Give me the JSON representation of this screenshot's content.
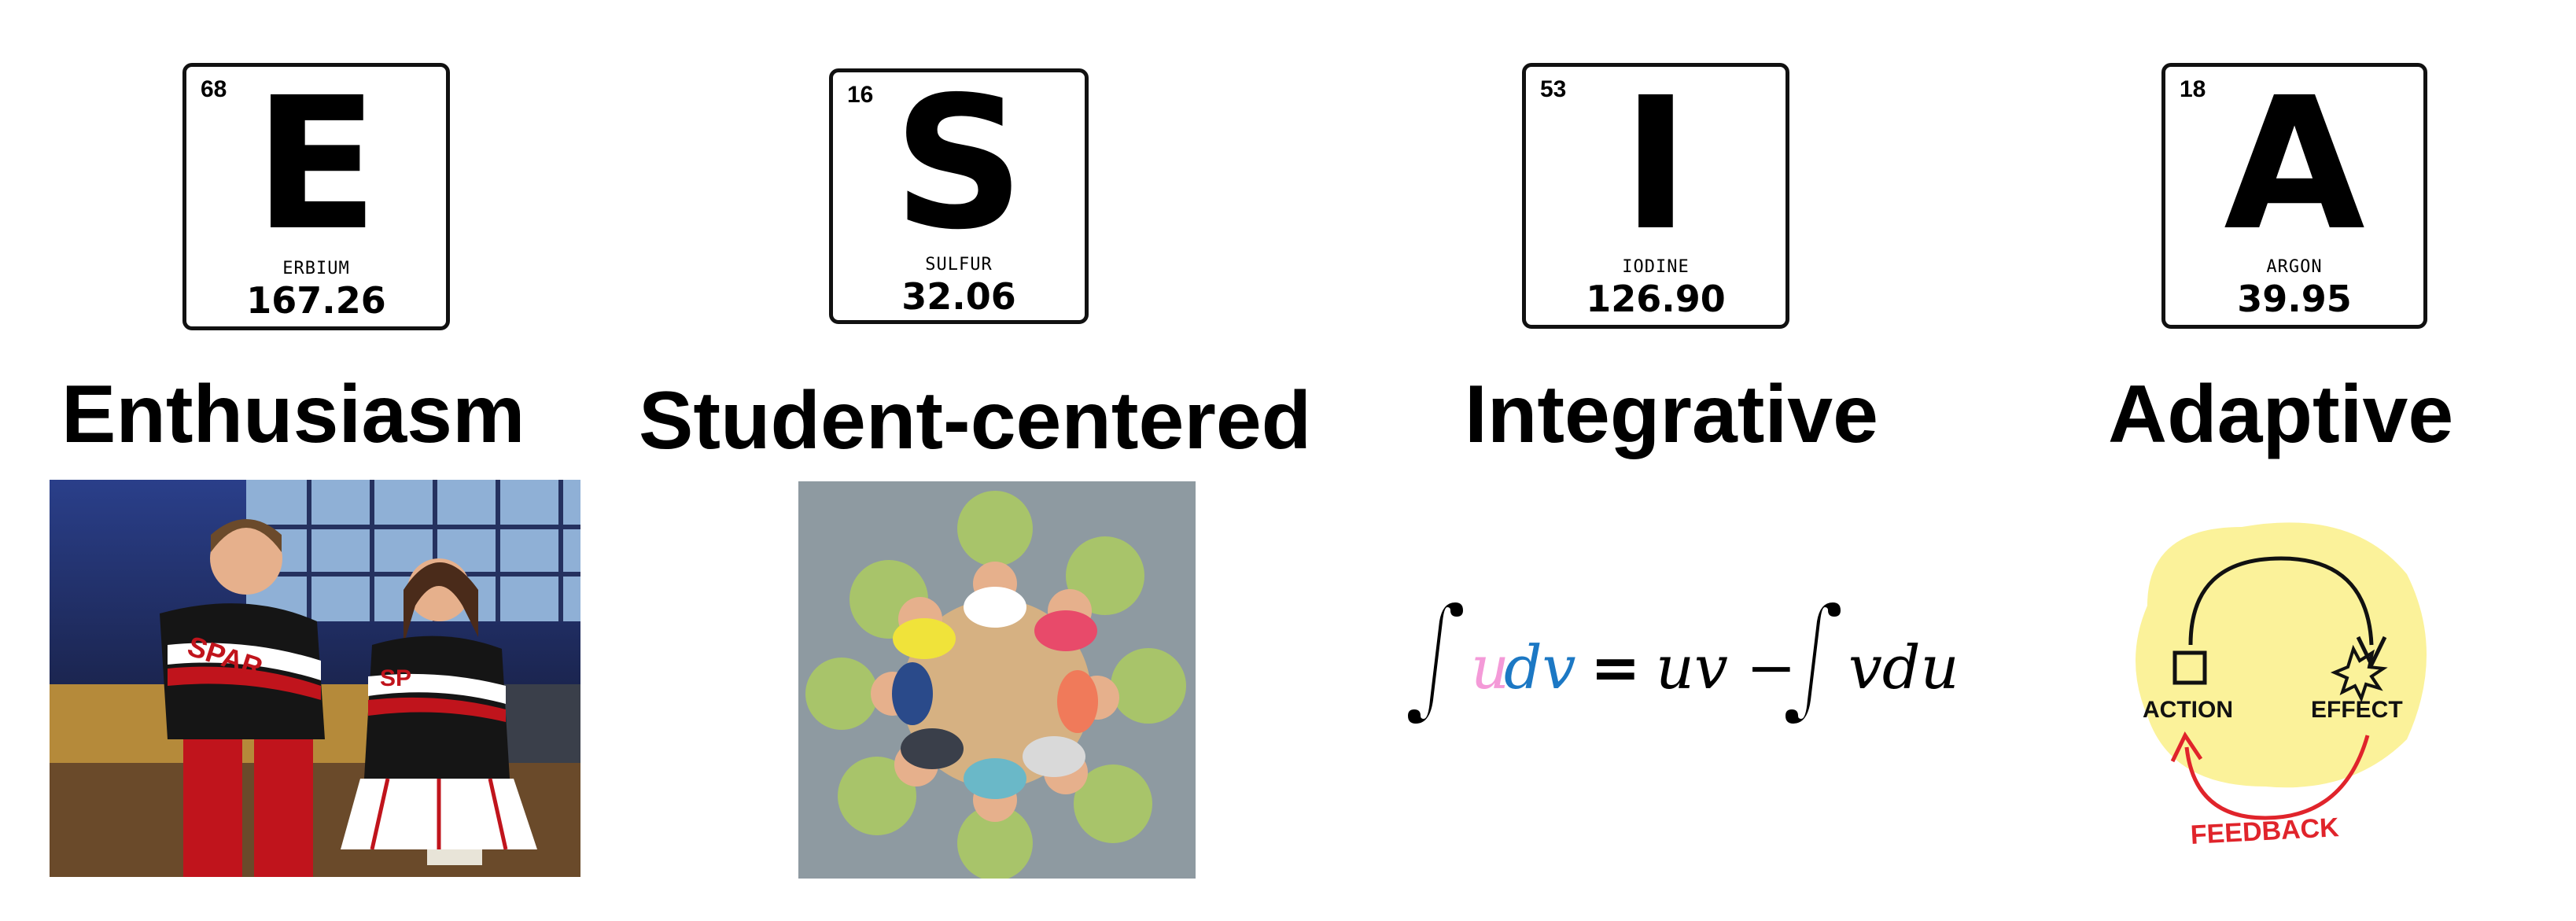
{
  "elements": [
    {
      "number": "68",
      "symbol": "E",
      "name": "ERBIUM",
      "mass": "167.26",
      "word": "Enthusiasm"
    },
    {
      "number": "16",
      "symbol": "S",
      "name": "SULFUR",
      "mass": "32.06",
      "word": "Student-centered"
    },
    {
      "number": "53",
      "symbol": "I",
      "name": "IODINE",
      "mass": "126.90",
      "word": "Integrative"
    },
    {
      "number": "18",
      "symbol": "A",
      "name": "ARGON",
      "mass": "39.95",
      "word": "Adaptive"
    }
  ],
  "cheer_photo": {
    "shirt_text": "SPAR",
    "badge_text": "SP"
  },
  "equation": {
    "u": "u",
    "dv": "dv",
    "equals": "=",
    "uv": "uv",
    "minus": "−",
    "vdu": "vdu"
  },
  "feedback_loop": {
    "action": "ACTION",
    "effect": "EFFECT",
    "feedback": "FEEDBACK"
  },
  "colors": {
    "u": "#f49ad8",
    "dv": "#1c78c4",
    "feedback": "#e0242b",
    "loop_bg": "#fbf29a"
  }
}
